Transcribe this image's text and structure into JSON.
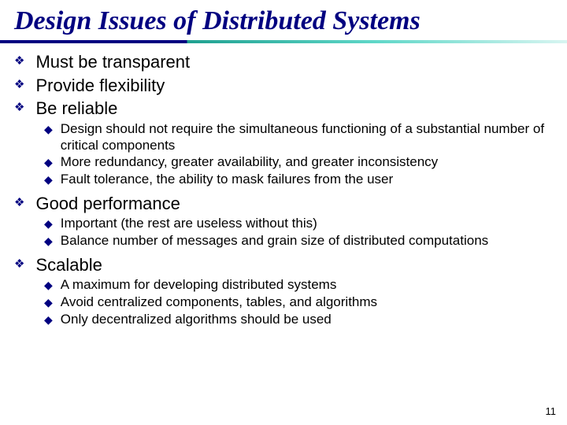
{
  "colors": {
    "title_color": "#000080",
    "bullet_color": "#000080",
    "text_color": "#000000",
    "background": "#ffffff",
    "divider_gradient": [
      "#000080",
      "#1fa090",
      "#5fd7c8",
      "#d8f5f1"
    ]
  },
  "typography": {
    "title_fontsize": 34,
    "title_font": "Times New Roman",
    "title_weight": "bold",
    "title_style": "italic",
    "lvl1_fontsize": 22,
    "lvl2_fontsize": 17,
    "body_font": "Arial"
  },
  "title": "Design Issues of Distributed Systems",
  "bullets": [
    {
      "text": "Must be transparent",
      "sub": []
    },
    {
      "text": "Provide flexibility",
      "sub": []
    },
    {
      "text": "Be reliable",
      "sub": [
        "Design should not require the simultaneous functioning of a substantial number of critical components",
        "More redundancy, greater availability, and greater inconsistency",
        "Fault tolerance, the ability to mask failures from the user"
      ]
    },
    {
      "text": "Good performance",
      "sub": [
        "Important (the rest are useless without this)",
        "Balance number of messages and grain size of distributed computations"
      ]
    },
    {
      "text": "Scalable",
      "sub": [
        "A maximum for developing distributed systems",
        "Avoid centralized components, tables, and algorithms",
        "Only decentralized algorithms should be used"
      ]
    }
  ],
  "lvl1_bullet_glyph": "❖",
  "lvl2_bullet_glyph": "◆",
  "page_number": "11"
}
